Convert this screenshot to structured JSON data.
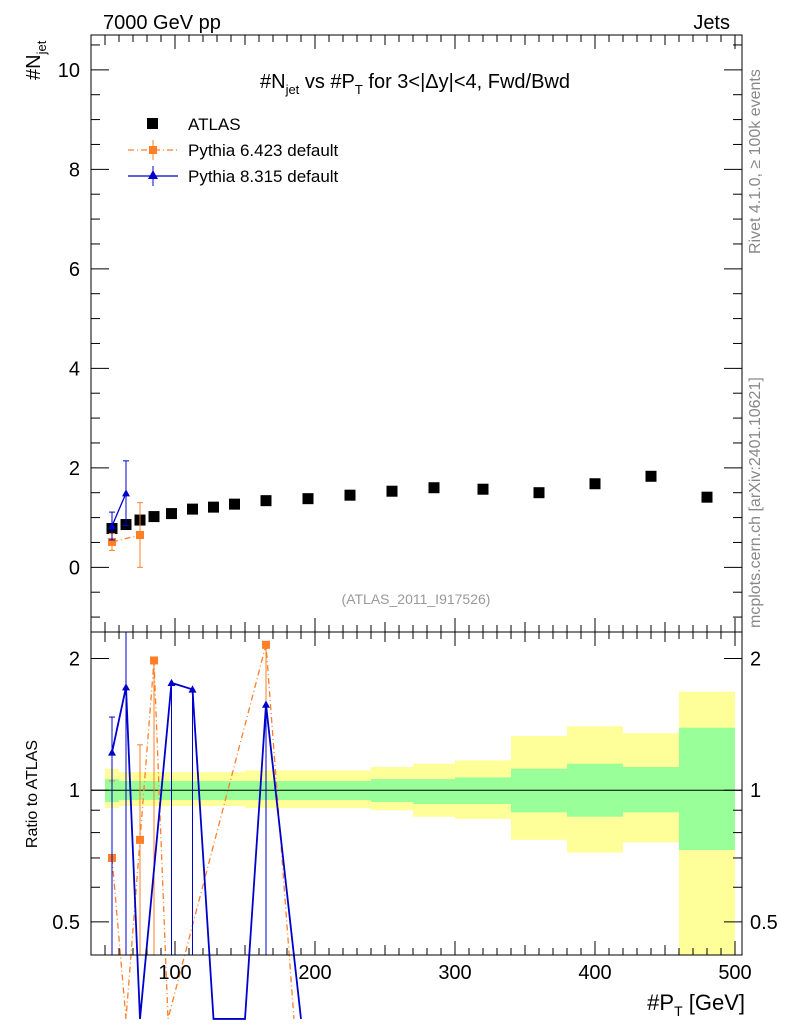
{
  "header": {
    "left": "7000 GeV pp",
    "right": "Jets"
  },
  "side_labels": {
    "rivet": "Rivet 4.1.0, ≥ 100k events",
    "mcplots": "mcplots.cern.ch [arXiv:2401.10621]"
  },
  "watermark": "(ATLAS_2011_I917526)",
  "chart_data": [
    {
      "type": "scatter",
      "panel": "main",
      "title": "#N_jet vs #P_T for 3<|Δy|<4, Fwd/Bwd",
      "title_parts": {
        "a": "#N",
        "a_sub": "jet",
        "b": " vs #P",
        "b_sub": "T",
        "c": " for 3<|Δy|<4, Fwd/Bwd"
      },
      "ylabel": "#N_jet",
      "ylabel_parts": {
        "main": "#N",
        "sub": "jet"
      },
      "xlabel": "#P_T [GeV]",
      "xlabel_parts": {
        "main": "#P",
        "sub": "T",
        "unit": " [GeV]"
      },
      "xlim": [
        40,
        505
      ],
      "ylim": [
        -1.3,
        10.7
      ],
      "yticks": [
        0,
        2,
        4,
        6,
        8,
        10
      ],
      "ytick_labels": [
        "0",
        "2",
        "4",
        "6",
        "8",
        "10"
      ],
      "legend": [
        "ATLAS",
        "Pythia 6.423 default",
        "Pythia 8.315 default"
      ],
      "series": [
        {
          "name": "ATLAS",
          "color": "#000000",
          "marker": "square",
          "x": [
            55,
            65,
            75,
            85,
            97.5,
            112.5,
            127.5,
            142.5,
            165,
            195,
            225,
            255,
            285,
            320,
            360,
            400,
            440,
            480
          ],
          "y": [
            0.78,
            0.86,
            0.95,
            1.02,
            1.08,
            1.17,
            1.21,
            1.27,
            1.34,
            1.38,
            1.45,
            1.53,
            1.6,
            1.57,
            1.5,
            1.68,
            1.83,
            1.41
          ]
        },
        {
          "name": "Pythia 6.423 default",
          "color": "#ff7f27",
          "marker": "square",
          "x": [
            55,
            75
          ],
          "y": [
            0.51,
            0.65
          ],
          "yerr": [
            0.17,
            0.65
          ]
        },
        {
          "name": "Pythia 8.315 default",
          "color": "#0000cc",
          "marker": "triangle",
          "x": [
            55,
            65
          ],
          "y": [
            0.83,
            1.49
          ],
          "yerr": [
            0.28,
            0.65
          ]
        }
      ]
    },
    {
      "type": "line",
      "panel": "ratio",
      "ylabel": "Ratio to ATLAS",
      "ylim": [
        0.42,
        2.3
      ],
      "log_y": true,
      "yticks": [
        0.5,
        1,
        2
      ],
      "ytick_labels": [
        "0.5",
        "1",
        "2"
      ],
      "xticks": [
        100,
        200,
        300,
        400,
        500
      ],
      "xtick_labels": [
        "100",
        "200",
        "300",
        "400",
        "500"
      ],
      "bands": {
        "edges": [
          50,
          60,
          70,
          80,
          90,
          105,
          120,
          135,
          150,
          180,
          210,
          240,
          270,
          300,
          340,
          380,
          420,
          460,
          500
        ],
        "inner_low": [
          0.94,
          0.95,
          0.95,
          0.95,
          0.95,
          0.95,
          0.95,
          0.95,
          0.95,
          0.95,
          0.95,
          0.94,
          0.93,
          0.93,
          0.89,
          0.87,
          0.89,
          0.73
        ],
        "inner_high": [
          1.06,
          1.05,
          1.05,
          1.05,
          1.05,
          1.05,
          1.05,
          1.05,
          1.05,
          1.05,
          1.05,
          1.06,
          1.06,
          1.07,
          1.12,
          1.15,
          1.13,
          1.39
        ],
        "outer_low": [
          0.91,
          0.92,
          0.92,
          0.92,
          0.92,
          0.92,
          0.92,
          0.92,
          0.91,
          0.91,
          0.91,
          0.9,
          0.87,
          0.86,
          0.77,
          0.72,
          0.76,
          0.3
        ],
        "outer_high": [
          1.12,
          1.1,
          1.1,
          1.1,
          1.1,
          1.1,
          1.1,
          1.1,
          1.11,
          1.11,
          1.11,
          1.13,
          1.15,
          1.17,
          1.33,
          1.4,
          1.35,
          1.68
        ]
      },
      "series": [
        {
          "name": "Pythia 6.423 default",
          "color": "#ff7f27",
          "marker": "square",
          "x": [
            55,
            65,
            75,
            85,
            95,
            165,
            185
          ],
          "y": [
            0.7,
            0.3,
            0.77,
            1.98,
            0.3,
            2.15,
            0.3
          ],
          "marked": [
            true,
            false,
            true,
            true,
            false,
            true,
            false
          ],
          "yerr_high": [
            0.35,
            0,
            0.5,
            0,
            0,
            0,
            0
          ]
        },
        {
          "name": "Pythia 8.315 default",
          "color": "#0000cc",
          "marker": "triangle",
          "x": [
            55,
            65,
            75,
            97.5,
            112.5,
            127.5,
            150,
            165,
            190
          ],
          "y": [
            1.22,
            1.72,
            0.3,
            1.76,
            1.7,
            0.3,
            0.3,
            1.57,
            0.3
          ],
          "marked": [
            true,
            true,
            false,
            true,
            true,
            false,
            false,
            true,
            false
          ],
          "yerr_high": [
            0.25,
            0.8,
            0,
            0,
            0,
            0,
            0,
            0,
            0
          ]
        }
      ]
    }
  ]
}
